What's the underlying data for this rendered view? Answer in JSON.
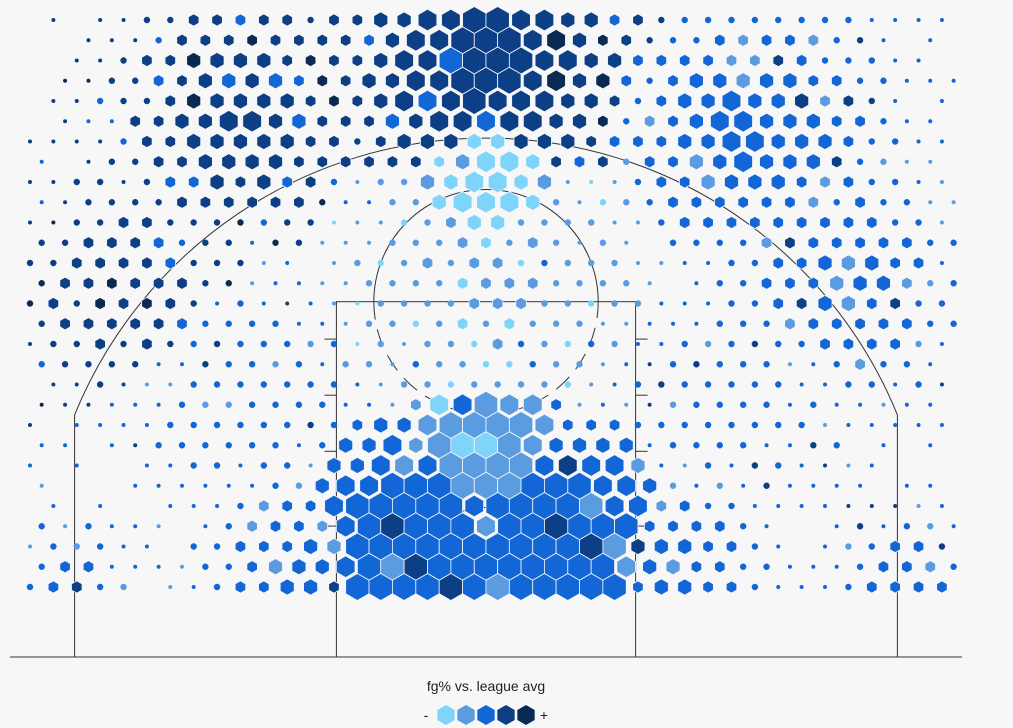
{
  "chart_data": {
    "type": "hexbin",
    "subject": "shot chart",
    "legend": {
      "title": "fg% vs. league avg",
      "minus_label": "-",
      "plus_label": "+",
      "colors": [
        "#7fd4fa",
        "#5b9be0",
        "#1366d6",
        "#0c3f86",
        "#0b2a52"
      ]
    },
    "color_levels": [
      "#7fd4fa",
      "#5b9be0",
      "#1366d6",
      "#0c3f86",
      "#0b2a52"
    ],
    "axes": {
      "x_range": [
        -25,
        25
      ],
      "y_range": [
        -1.5,
        34.5
      ],
      "grid": false
    },
    "zones": [
      {
        "x": 0,
        "y": 2,
        "r": 4.2,
        "count": 130,
        "level": 2,
        "spread": 1.0
      },
      {
        "x": -4,
        "y": 6,
        "r": 4.5,
        "count": 70,
        "level": 2,
        "spread": 1.0
      },
      {
        "x": 4,
        "y": 6,
        "r": 4.5,
        "count": 70,
        "level": 2,
        "spread": 1.0
      },
      {
        "x": 0,
        "y": 11,
        "r": 3.0,
        "count": 20,
        "level": 1,
        "spread": 1.0
      },
      {
        "x": -10,
        "y": 5,
        "r": 3.0,
        "count": 24,
        "level": 2,
        "spread": 0.4
      },
      {
        "x": 10,
        "y": 5,
        "r": 3.0,
        "count": 24,
        "level": 2,
        "spread": 0.4
      },
      {
        "x": -13,
        "y": 14,
        "r": 4.0,
        "count": 18,
        "level": 2,
        "spread": 0.15
      },
      {
        "x": 13,
        "y": 14,
        "r": 4.0,
        "count": 18,
        "level": 2,
        "spread": 0.15
      },
      {
        "x": 0,
        "y": 20,
        "r": 5.0,
        "count": 22,
        "level": 1,
        "spread": 0.2
      },
      {
        "x": 0,
        "y": 25,
        "r": 3.0,
        "count": 10,
        "level": 0,
        "spread": 0.6
      },
      {
        "x": -22.5,
        "y": 4,
        "r": 2.0,
        "count": 14,
        "level": 2,
        "spread": 0.25
      },
      {
        "x": 22.5,
        "y": 4,
        "r": 2.0,
        "count": 14,
        "level": 2,
        "spread": 0.35
      },
      {
        "x": -19,
        "y": 20,
        "r": 3.5,
        "count": 20,
        "level": 3,
        "spread": 0.3
      },
      {
        "x": 19,
        "y": 20,
        "r": 3.5,
        "count": 22,
        "level": 2,
        "spread": 0.4
      },
      {
        "x": -13,
        "y": 29,
        "r": 4.0,
        "count": 26,
        "level": 3,
        "spread": 0.5
      },
      {
        "x": 14,
        "y": 28,
        "r": 4.0,
        "count": 26,
        "level": 2,
        "spread": 0.55
      },
      {
        "x": 0,
        "y": 32,
        "r": 5.0,
        "count": 42,
        "level": 3,
        "spread": 0.8
      }
    ],
    "court": {
      "baseline_y": 0,
      "hoop": [
        0,
        4
      ],
      "three_point_radius": 23.75,
      "corner_x": 22,
      "paint_half_width": 8,
      "paint_height": 19,
      "free_throw_radius": 6
    }
  }
}
